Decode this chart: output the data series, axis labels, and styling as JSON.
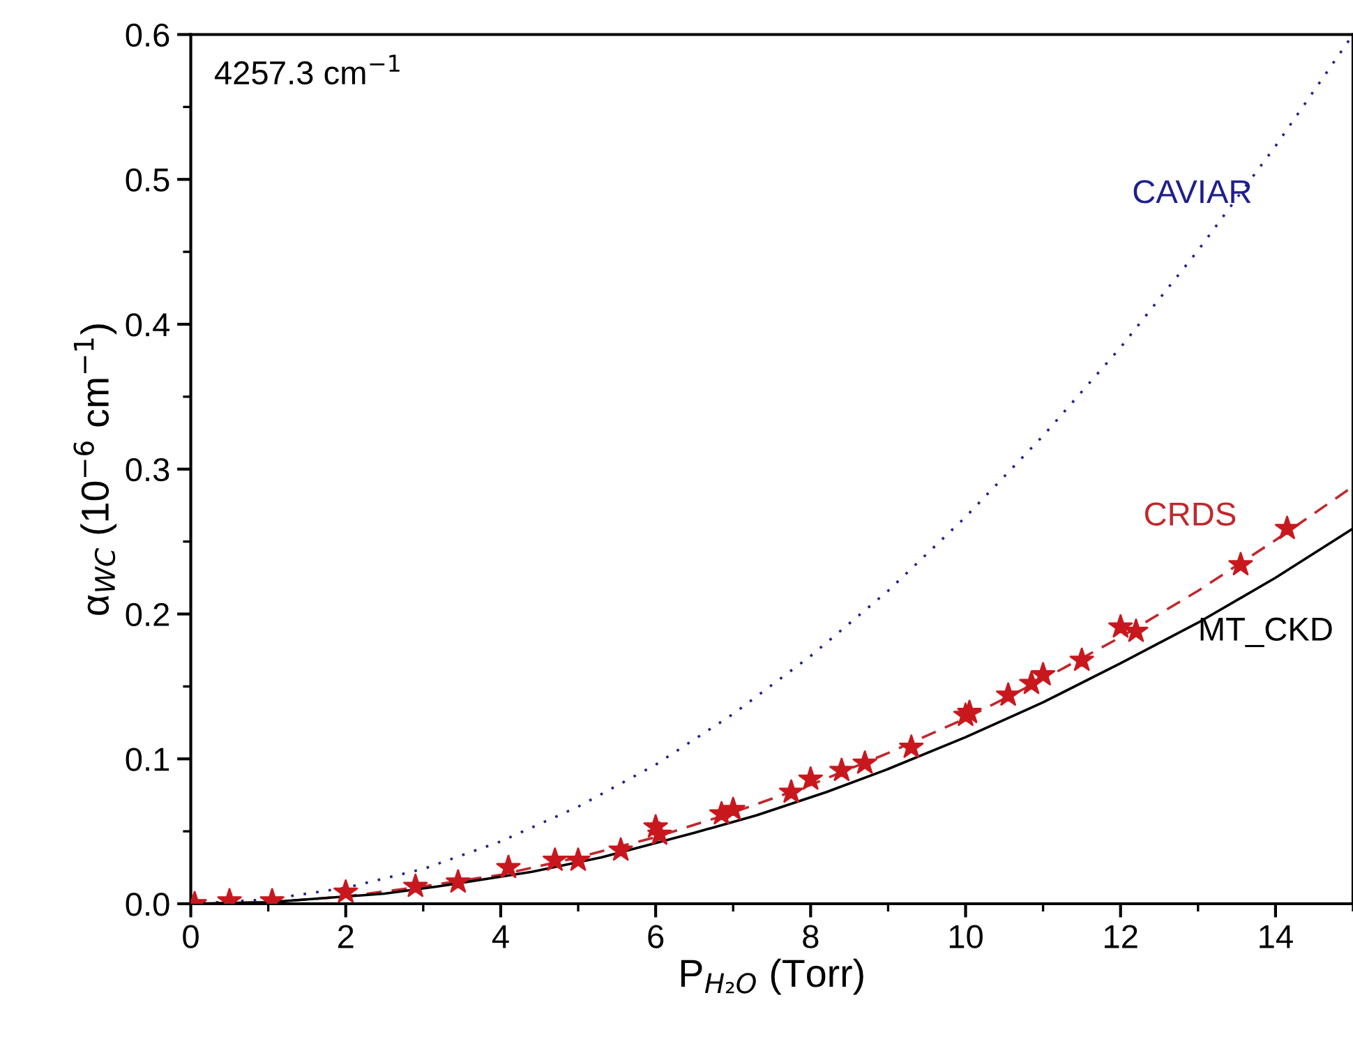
{
  "chart_data": {
    "type": "line",
    "xlabel": "P$_{H₂O}$ (Torr)",
    "ylabel": "α$_{WC}$ (10$^{−6}$ cm$^{−1}$)",
    "annotations": [
      "4257.3 cm$^{−1}$"
    ],
    "xlim": [
      0,
      15
    ],
    "xticks": [
      0,
      2,
      4,
      6,
      8,
      10,
      12,
      14
    ],
    "ylim": [
      0,
      0.6
    ],
    "yticks": [
      {
        "value": 0,
        "label": "0.0"
      },
      0.1,
      0.2,
      0.3,
      0.4,
      0.5,
      0.6
    ],
    "grid": false,
    "legend": false,
    "series": [
      {
        "name": "CAVIAR",
        "color": "#1f1f8f",
        "line_style": "dotted",
        "marker": "none",
        "x": [
          0,
          1,
          2,
          3,
          4,
          5,
          6,
          7,
          8,
          9,
          10,
          11,
          12,
          13,
          14,
          15
        ],
        "values": [
          0,
          0.003,
          0.011,
          0.024,
          0.043,
          0.067,
          0.096,
          0.131,
          0.171,
          0.216,
          0.267,
          0.323,
          0.384,
          0.451,
          0.523,
          0.6
        ]
      },
      {
        "name": "CRDS",
        "color": "#c0282d",
        "line_style": "dashed",
        "marker": "none",
        "x": [
          0,
          1,
          2,
          3,
          4,
          5,
          6,
          7,
          8,
          9,
          10,
          11,
          12,
          13,
          14,
          15
        ],
        "values": [
          0,
          0.001,
          0.005,
          0.012,
          0.02,
          0.032,
          0.046,
          0.063,
          0.082,
          0.104,
          0.128,
          0.155,
          0.184,
          0.216,
          0.251,
          0.288
        ]
      },
      {
        "name": "MT_CKD",
        "color": "#000000",
        "line_style": "solid",
        "marker": "none",
        "x": [
          0,
          1,
          1.5,
          2.5,
          3.2,
          4.4,
          5.3,
          6.5,
          7.3,
          8.2,
          9,
          10,
          11,
          12,
          13,
          14,
          15
        ],
        "values": [
          0,
          0.001,
          0.003,
          0.007,
          0.012,
          0.022,
          0.032,
          0.049,
          0.061,
          0.077,
          0.093,
          0.115,
          0.139,
          0.166,
          0.194,
          0.225,
          0.259
        ]
      },
      {
        "type": "scatter",
        "color": "#c8181e",
        "marker": "star",
        "x": [
          0.05,
          0.5,
          1.05,
          2.0,
          2.9,
          3.45,
          4.1,
          4.7,
          5.0,
          5.55,
          6.0,
          6.05,
          6.85,
          7.0,
          7.75,
          8.0,
          8.4,
          8.7,
          9.3,
          10.0,
          10.05,
          10.55,
          10.85,
          11.0,
          11.5,
          12.0,
          12.2,
          13.55,
          14.15
        ],
        "values": [
          0.0,
          0.002,
          0.002,
          0.008,
          0.012,
          0.015,
          0.025,
          0.03,
          0.03,
          0.037,
          0.053,
          0.048,
          0.062,
          0.065,
          0.077,
          0.086,
          0.092,
          0.097,
          0.108,
          0.13,
          0.132,
          0.144,
          0.152,
          0.158,
          0.168,
          0.191,
          0.188,
          0.234,
          0.259
        ]
      }
    ]
  }
}
